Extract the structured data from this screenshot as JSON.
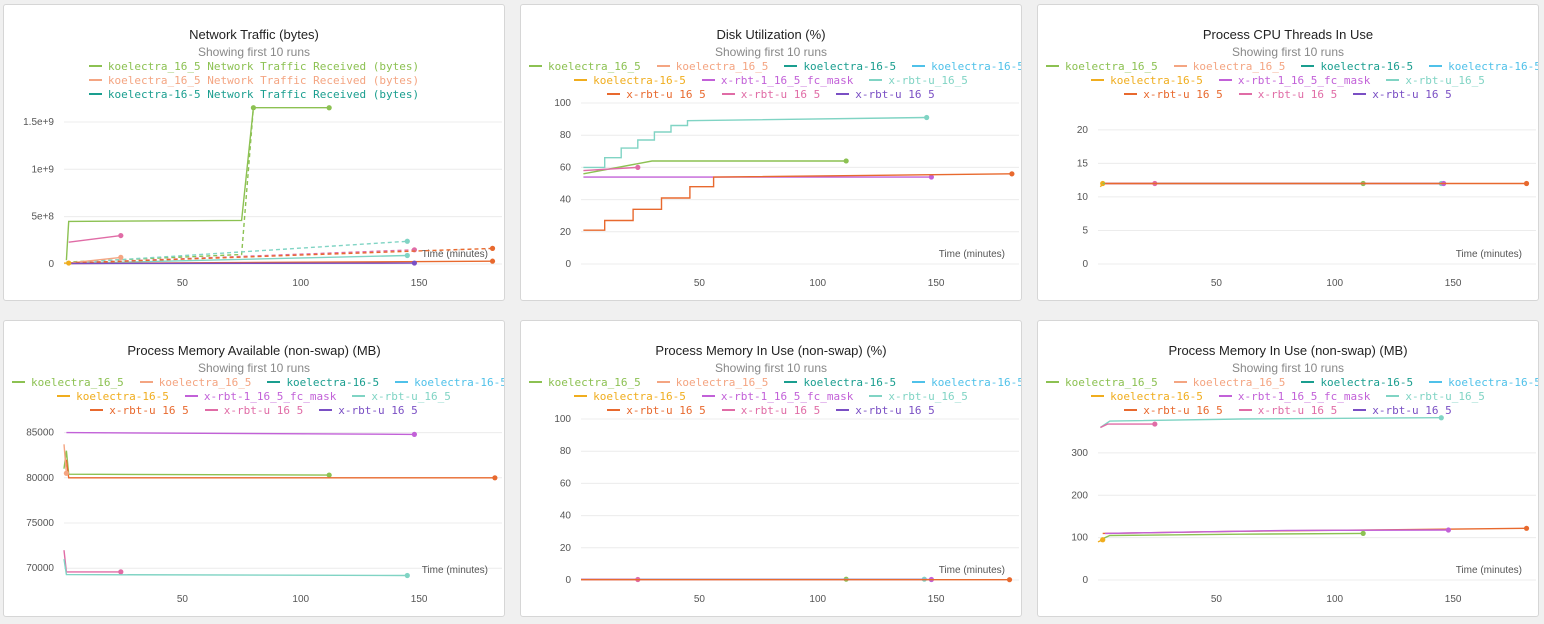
{
  "colors": {
    "koelectra_16_5_green": "#8cc152",
    "koelectra_16_5_salmon": "#f4a582",
    "koelectra_16_5_teal": "#1a9e8f",
    "koelectra_16_5_cyan": "#4fc1e9",
    "koelectra_16_5_gold": "#f0ad1e",
    "x_rbt_1_fc_mask_purple": "#c261d8",
    "x_rbt_u_mint": "#80d4c4",
    "x_rbt_u_orange": "#e8692e",
    "x_rbt_u_pink": "#e06ca6",
    "x_rbt_u_violet": "#7a4fc4"
  },
  "chart_data": [
    {
      "id": "net",
      "type": "line",
      "title": "Network Traffic (bytes)",
      "subtitle": "Showing first 10 runs",
      "xlabel": "Time (minutes)",
      "xlim": [
        0,
        185
      ],
      "ylim": [
        0,
        1700000000
      ],
      "xticks": [
        50,
        100,
        150
      ],
      "yticks": [
        0,
        500000000,
        1000000000,
        1500000000
      ],
      "ytick_labels": [
        "0",
        "5e+8",
        "1e+9",
        "1.5e+9"
      ],
      "legend_rows": [
        [
          {
            "name": "koelectra_16_5 Network Traffic Received (bytes)",
            "color": "#8cc152"
          }
        ],
        [
          {
            "name": "koelectra_16_5 Network Traffic Received (bytes)",
            "color": "#f4a582"
          }
        ],
        [
          {
            "name": "koelectra-16-5 Network Traffic Received (bytes)",
            "color": "#1a9e8f"
          }
        ]
      ],
      "series": [
        {
          "name": "koelectra_16_5 Network Traffic Received (bytes)",
          "color": "#8cc152",
          "x": [
            1,
            2,
            75,
            80,
            112
          ],
          "y": [
            40000000,
            450000000,
            460000000,
            1650000000,
            1650000000
          ]
        },
        {
          "name": "",
          "color": "#8cc152",
          "dash": true,
          "x": [
            1,
            75,
            80
          ],
          "y": [
            20000000,
            100000000,
            1650000000
          ]
        },
        {
          "name": "",
          "color": "#80d4c4",
          "dash": true,
          "x": [
            1,
            145
          ],
          "y": [
            10000000,
            240000000
          ]
        },
        {
          "name": "",
          "color": "#80d4c4",
          "x": [
            1,
            145
          ],
          "y": [
            5000000,
            90000000
          ]
        },
        {
          "name": "",
          "color": "#e06ca6",
          "x": [
            2,
            24
          ],
          "y": [
            230000000,
            300000000
          ]
        },
        {
          "name": "",
          "color": "#e06ca6",
          "dash": true,
          "x": [
            2,
            148
          ],
          "y": [
            10000000,
            150000000
          ]
        },
        {
          "name": "",
          "color": "#f4a582",
          "x": [
            2,
            24
          ],
          "y": [
            10000000,
            70000000
          ]
        },
        {
          "name": "",
          "color": "#e8692e",
          "dash": true,
          "x": [
            2,
            181
          ],
          "y": [
            10000000,
            165000000
          ]
        },
        {
          "name": "",
          "color": "#e8692e",
          "x": [
            2,
            181
          ],
          "y": [
            5000000,
            30000000
          ]
        },
        {
          "name": "",
          "color": "#7a4fc4",
          "x": [
            3,
            148
          ],
          "y": [
            5000000,
            10000000
          ]
        },
        {
          "name": "",
          "color": "#f0ad1e",
          "x": [
            0,
            2
          ],
          "y": [
            10000000,
            10000000
          ]
        }
      ]
    },
    {
      "id": "disk",
      "type": "line",
      "title": "Disk Utilization (%)",
      "subtitle": "Showing first 10 runs",
      "xlabel": "Time (minutes)",
      "xlim": [
        0,
        185
      ],
      "ylim": [
        0,
        100
      ],
      "xticks": [
        50,
        100,
        150
      ],
      "yticks": [
        0,
        20,
        40,
        60,
        80,
        100
      ],
      "ytick_labels": [
        "0",
        "20",
        "40",
        "60",
        "80",
        "100"
      ],
      "legend_rows": [
        [
          {
            "name": "koelectra_16_5",
            "color": "#8cc152"
          },
          {
            "name": "koelectra_16_5",
            "color": "#f4a582"
          },
          {
            "name": "koelectra-16-5",
            "color": "#1a9e8f"
          },
          {
            "name": "koelectra-16-5",
            "color": "#4fc1e9"
          }
        ],
        [
          {
            "name": "koelectra-16-5",
            "color": "#f0ad1e"
          },
          {
            "name": "x-rbt-1_16_5_fc_mask",
            "color": "#c261d8"
          },
          {
            "name": "x-rbt-u_16_5",
            "color": "#80d4c4"
          }
        ],
        [
          {
            "name": "x-rbt-u_16_5",
            "color": "#e8692e"
          },
          {
            "name": "x-rbt-u_16_5",
            "color": "#e06ca6"
          },
          {
            "name": "x-rbt-u_16_5",
            "color": "#7a4fc4"
          }
        ]
      ],
      "series": [
        {
          "name": "",
          "color": "#80d4c4",
          "x": [
            1,
            10,
            10,
            17,
            17,
            24,
            24,
            31,
            31,
            38,
            38,
            45,
            45,
            146
          ],
          "y": [
            60,
            60,
            66,
            66,
            72,
            72,
            77,
            77,
            82,
            82,
            86,
            86,
            89,
            91
          ]
        },
        {
          "name": "",
          "color": "#8cc152",
          "x": [
            1,
            30,
            112
          ],
          "y": [
            56,
            64,
            64
          ]
        },
        {
          "name": "",
          "color": "#c261d8",
          "x": [
            1,
            148
          ],
          "y": [
            54,
            54
          ]
        },
        {
          "name": "",
          "color": "#e06ca6",
          "x": [
            1,
            24
          ],
          "y": [
            58,
            60
          ]
        },
        {
          "name": "",
          "color": "#e8692e",
          "x": [
            1,
            10,
            10,
            22,
            22,
            34,
            34,
            46,
            46,
            56,
            56,
            182
          ],
          "y": [
            21,
            21,
            27,
            27,
            34,
            34,
            41,
            41,
            48,
            48,
            54,
            56
          ]
        }
      ]
    },
    {
      "id": "threads",
      "type": "line",
      "title": "Process CPU Threads In Use",
      "subtitle": "Showing first 10 runs",
      "xlabel": "Time (minutes)",
      "xlim": [
        0,
        185
      ],
      "ylim": [
        0,
        24
      ],
      "xticks": [
        50,
        100,
        150
      ],
      "yticks": [
        0,
        5,
        10,
        15,
        20
      ],
      "ytick_labels": [
        "0",
        "5",
        "10",
        "15",
        "20"
      ],
      "legend_rows": [
        [
          {
            "name": "koelectra_16_5",
            "color": "#8cc152"
          },
          {
            "name": "koelectra_16_5",
            "color": "#f4a582"
          },
          {
            "name": "koelectra-16-5",
            "color": "#1a9e8f"
          },
          {
            "name": "koelectra-16-5",
            "color": "#4fc1e9"
          }
        ],
        [
          {
            "name": "koelectra-16-5",
            "color": "#f0ad1e"
          },
          {
            "name": "x-rbt-1_16_5_fc_mask",
            "color": "#c261d8"
          },
          {
            "name": "x-rbt-u_16_5",
            "color": "#80d4c4"
          }
        ],
        [
          {
            "name": "x-rbt-u_16_5",
            "color": "#e8692e"
          },
          {
            "name": "x-rbt-u_16_5",
            "color": "#e06ca6"
          },
          {
            "name": "x-rbt-u_16_5",
            "color": "#7a4fc4"
          }
        ]
      ],
      "series": [
        {
          "name": "",
          "color": "#f0ad1e",
          "x": [
            1,
            2
          ],
          "y": [
            11.5,
            12
          ]
        },
        {
          "name": "",
          "color": "#8cc152",
          "x": [
            2,
            112
          ],
          "y": [
            12,
            12
          ]
        },
        {
          "name": "",
          "color": "#80d4c4",
          "x": [
            3,
            145
          ],
          "y": [
            12,
            12
          ]
        },
        {
          "name": "",
          "color": "#c261d8",
          "x": [
            3,
            146
          ],
          "y": [
            12,
            12
          ]
        },
        {
          "name": "",
          "color": "#e06ca6",
          "x": [
            3,
            24
          ],
          "y": [
            12,
            12
          ]
        },
        {
          "name": "",
          "color": "#e8692e",
          "x": [
            3,
            181
          ],
          "y": [
            12,
            12
          ]
        }
      ]
    },
    {
      "id": "memavail",
      "type": "line",
      "title": "Process Memory Available (non-swap) (MB)",
      "subtitle": "Showing first 10 runs",
      "xlabel": "Time (minutes)",
      "xlim": [
        0,
        185
      ],
      "ylim": [
        68700,
        86500
      ],
      "xticks": [
        50,
        100,
        150
      ],
      "yticks": [
        70000,
        75000,
        80000,
        85000
      ],
      "ytick_labels": [
        "70000",
        "75000",
        "80000",
        "85000"
      ],
      "legend_rows": [
        [
          {
            "name": "koelectra_16_5",
            "color": "#8cc152"
          },
          {
            "name": "koelectra_16_5",
            "color": "#f4a582"
          },
          {
            "name": "koelectra-16-5",
            "color": "#1a9e8f"
          },
          {
            "name": "koelectra-16-5",
            "color": "#4fc1e9"
          }
        ],
        [
          {
            "name": "koelectra-16-5",
            "color": "#f0ad1e"
          },
          {
            "name": "x-rbt-1_16_5_fc_mask",
            "color": "#c261d8"
          },
          {
            "name": "x-rbt-u_16_5",
            "color": "#80d4c4"
          }
        ],
        [
          {
            "name": "x-rbt-u_16_5",
            "color": "#e8692e"
          },
          {
            "name": "x-rbt-u_16_5",
            "color": "#e06ca6"
          },
          {
            "name": "x-rbt-u_16_5",
            "color": "#7a4fc4"
          }
        ]
      ],
      "series": [
        {
          "name": "",
          "color": "#c261d8",
          "x": [
            1,
            148
          ],
          "y": [
            85000,
            84800
          ]
        },
        {
          "name": "",
          "color": "#8cc152",
          "x": [
            0,
            1,
            2,
            112
          ],
          "y": [
            81000,
            83000,
            80400,
            80300
          ]
        },
        {
          "name": "",
          "color": "#e8692e",
          "x": [
            1,
            2,
            182
          ],
          "y": [
            82000,
            80000,
            80000
          ]
        },
        {
          "name": "",
          "color": "#f4a582",
          "x": [
            0,
            1
          ],
          "y": [
            83700,
            80500
          ]
        },
        {
          "name": "",
          "color": "#e06ca6",
          "x": [
            0,
            1,
            24
          ],
          "y": [
            72000,
            69600,
            69600
          ]
        },
        {
          "name": "",
          "color": "#80d4c4",
          "x": [
            0,
            1,
            145
          ],
          "y": [
            71000,
            69300,
            69200
          ]
        }
      ]
    },
    {
      "id": "mempct",
      "type": "line",
      "title": "Process Memory In Use (non-swap) (%)",
      "subtitle": "Showing first 10 runs",
      "xlabel": "Time (minutes)",
      "xlim": [
        0,
        185
      ],
      "ylim": [
        0,
        100
      ],
      "xticks": [
        50,
        100,
        150
      ],
      "yticks": [
        0,
        20,
        40,
        60,
        80,
        100
      ],
      "ytick_labels": [
        "0",
        "20",
        "40",
        "60",
        "80",
        "100"
      ],
      "legend_rows": [
        [
          {
            "name": "koelectra_16_5",
            "color": "#8cc152"
          },
          {
            "name": "koelectra_16_5",
            "color": "#f4a582"
          },
          {
            "name": "koelectra-16-5",
            "color": "#1a9e8f"
          },
          {
            "name": "koelectra-16-5",
            "color": "#4fc1e9"
          }
        ],
        [
          {
            "name": "koelectra-16-5",
            "color": "#f0ad1e"
          },
          {
            "name": "x-rbt-1_16_5_fc_mask",
            "color": "#c261d8"
          },
          {
            "name": "x-rbt-u_16_5",
            "color": "#80d4c4"
          }
        ],
        [
          {
            "name": "x-rbt-u_16_5",
            "color": "#e8692e"
          },
          {
            "name": "x-rbt-u_16_5",
            "color": "#e06ca6"
          },
          {
            "name": "x-rbt-u_16_5",
            "color": "#7a4fc4"
          }
        ]
      ],
      "series": [
        {
          "name": "",
          "color": "#8cc152",
          "x": [
            0,
            112
          ],
          "y": [
            0.5,
            0.5
          ]
        },
        {
          "name": "",
          "color": "#80d4c4",
          "x": [
            0,
            145
          ],
          "y": [
            0.5,
            0.5
          ]
        },
        {
          "name": "",
          "color": "#c261d8",
          "x": [
            0,
            148
          ],
          "y": [
            0.3,
            0.3
          ]
        },
        {
          "name": "",
          "color": "#e06ca6",
          "x": [
            0,
            24
          ],
          "y": [
            0.3,
            0.3
          ]
        },
        {
          "name": "",
          "color": "#e8692e",
          "x": [
            0,
            181
          ],
          "y": [
            0.2,
            0.2
          ]
        }
      ]
    },
    {
      "id": "memmb",
      "type": "line",
      "title": "Process Memory In Use (non-swap) (MB)",
      "subtitle": "Showing first 10 runs",
      "xlabel": "Time (minutes)",
      "xlim": [
        0,
        185
      ],
      "ylim": [
        0,
        380
      ],
      "xticks": [
        50,
        100,
        150
      ],
      "yticks": [
        0,
        100,
        200,
        300
      ],
      "ytick_labels": [
        "0",
        "100",
        "200",
        "300"
      ],
      "legend_rows": [
        [
          {
            "name": "koelectra_16_5",
            "color": "#8cc152"
          },
          {
            "name": "koelectra_16_5",
            "color": "#f4a582"
          },
          {
            "name": "koelectra-16-5",
            "color": "#1a9e8f"
          },
          {
            "name": "koelectra-16-5",
            "color": "#4fc1e9"
          }
        ],
        [
          {
            "name": "koelectra-16-5",
            "color": "#f0ad1e"
          },
          {
            "name": "x-rbt-1_16_5_fc_mask",
            "color": "#c261d8"
          },
          {
            "name": "x-rbt-u_16_5",
            "color": "#80d4c4"
          }
        ],
        [
          {
            "name": "x-rbt-u_16_5",
            "color": "#e8692e"
          },
          {
            "name": "x-rbt-u_16_5",
            "color": "#e06ca6"
          },
          {
            "name": "x-rbt-u_16_5",
            "color": "#7a4fc4"
          }
        ]
      ],
      "series": [
        {
          "name": "",
          "color": "#80d4c4",
          "x": [
            1,
            5,
            60,
            145
          ],
          "y": [
            360,
            375,
            380,
            383
          ]
        },
        {
          "name": "",
          "color": "#e06ca6",
          "x": [
            1,
            4,
            24
          ],
          "y": [
            360,
            368,
            368
          ]
        },
        {
          "name": "",
          "color": "#e8692e",
          "x": [
            2,
            60,
            181
          ],
          "y": [
            110,
            115,
            122
          ]
        },
        {
          "name": "",
          "color": "#c261d8",
          "x": [
            3,
            80,
            148
          ],
          "y": [
            110,
            117,
            118
          ]
        },
        {
          "name": "",
          "color": "#8cc152",
          "x": [
            1,
            5,
            60,
            112
          ],
          "y": [
            95,
            105,
            108,
            110
          ]
        },
        {
          "name": "",
          "color": "#f0ad1e",
          "x": [
            0,
            2
          ],
          "y": [
            90,
            95
          ]
        }
      ]
    }
  ]
}
